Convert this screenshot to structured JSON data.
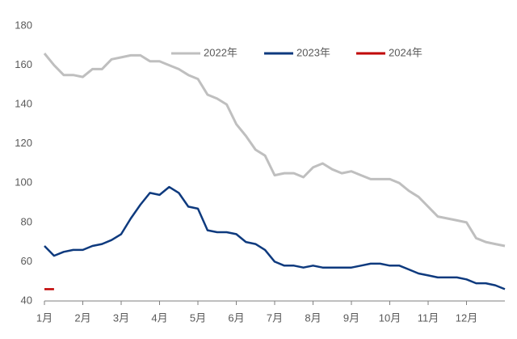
{
  "chart_data": {
    "type": "line",
    "categories": [
      "1月",
      null,
      null,
      null,
      "2月",
      null,
      null,
      null,
      "3月",
      null,
      null,
      null,
      "4月",
      null,
      null,
      null,
      "5月",
      null,
      null,
      null,
      "6月",
      null,
      null,
      null,
      "7月",
      null,
      null,
      null,
      "8月",
      null,
      null,
      null,
      "9月",
      null,
      null,
      null,
      "10月",
      null,
      null,
      null,
      "11月",
      null,
      null,
      null,
      "12月",
      null,
      null,
      null,
      null
    ],
    "series": [
      {
        "name": "2022年",
        "color": "#bfbfbf",
        "values": [
          166,
          160,
          155,
          155,
          154,
          158,
          158,
          163,
          164,
          165,
          165,
          162,
          162,
          160,
          158,
          155,
          153,
          145,
          143,
          140,
          130,
          124,
          117,
          114,
          104,
          105,
          105,
          103,
          108,
          110,
          107,
          105,
          106,
          104,
          102,
          102,
          102,
          100,
          96,
          93,
          88,
          83,
          82,
          81,
          80,
          72,
          70,
          69,
          68
        ]
      },
      {
        "name": "2023年",
        "color": "#0e3a7e",
        "values": [
          68,
          63,
          65,
          66,
          66,
          68,
          69,
          71,
          74,
          82,
          89,
          95,
          94,
          98,
          95,
          88,
          87,
          76,
          75,
          75,
          74,
          70,
          69,
          66,
          60,
          58,
          58,
          57,
          58,
          57,
          57,
          57,
          57,
          58,
          59,
          59,
          58,
          58,
          56,
          54,
          53,
          52,
          52,
          52,
          51,
          49,
          49,
          48,
          46
        ]
      },
      {
        "name": "2024年",
        "color": "#c00000",
        "values": [
          46,
          46,
          null,
          null,
          null,
          null,
          null,
          null,
          null,
          null,
          null,
          null,
          null,
          null,
          null,
          null,
          null,
          null,
          null,
          null,
          null,
          null,
          null,
          null,
          null,
          null,
          null,
          null,
          null,
          null,
          null,
          null,
          null,
          null,
          null,
          null,
          null,
          null,
          null,
          null,
          null,
          null,
          null,
          null,
          null,
          null,
          null,
          null,
          null
        ]
      }
    ],
    "ylim": [
      40,
      180
    ],
    "yticks": [
      40,
      60,
      80,
      100,
      120,
      140,
      160,
      180
    ],
    "legend": "top"
  }
}
